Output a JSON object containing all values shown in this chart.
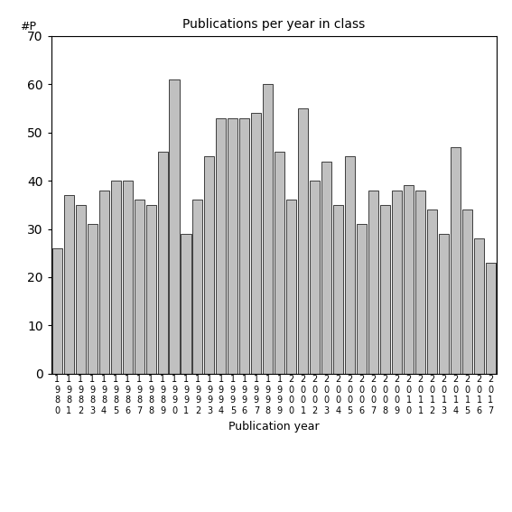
{
  "title": "Publications per year in class",
  "xlabel": "Publication year",
  "ylabel": "#P",
  "ylim": [
    0,
    70
  ],
  "yticks": [
    0,
    10,
    20,
    30,
    40,
    50,
    60,
    70
  ],
  "bar_color": "#c0c0c0",
  "bar_edgecolor": "#000000",
  "years": [
    1980,
    1981,
    1982,
    1983,
    1984,
    1985,
    1986,
    1987,
    1988,
    1989,
    1990,
    1991,
    1992,
    1993,
    1994,
    1995,
    1996,
    1997,
    1998,
    1999,
    2000,
    2001,
    2002,
    2003,
    2004,
    2005,
    2006,
    2007,
    2008,
    2009,
    2010,
    2011,
    2012,
    2013,
    2014,
    2015,
    2016,
    2017
  ],
  "values": [
    26,
    37,
    35,
    31,
    38,
    40,
    40,
    36,
    35,
    46,
    61,
    29,
    36,
    45,
    53,
    53,
    53,
    54,
    60,
    46,
    36,
    55,
    40,
    44,
    35,
    45,
    31,
    38,
    35,
    38,
    39,
    38,
    34,
    29,
    47,
    34,
    28,
    23
  ]
}
